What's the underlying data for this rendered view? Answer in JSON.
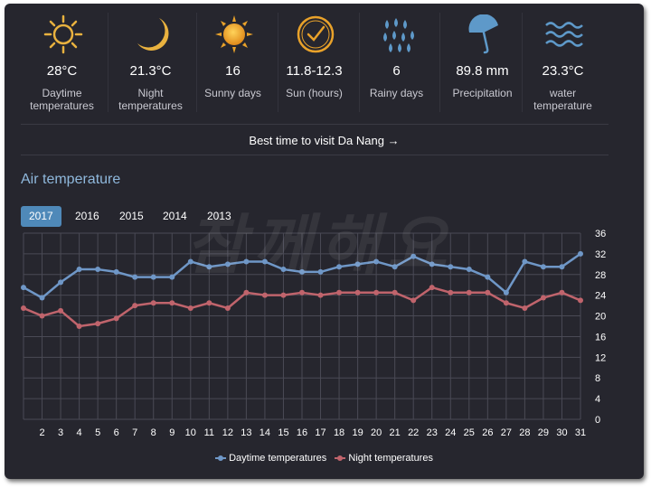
{
  "stats": [
    {
      "icon": "sun-icon",
      "value": "28°C",
      "label": "Daytime temperatures"
    },
    {
      "icon": "moon-icon",
      "value": "21.3°C",
      "label": "Night temperatures"
    },
    {
      "icon": "sunny-icon",
      "value": "16",
      "label": "Sunny days"
    },
    {
      "icon": "clock-icon",
      "value": "11.8-12.3",
      "label": "Sun (hours)"
    },
    {
      "icon": "raindrops-icon",
      "value": "6",
      "label": "Rainy days"
    },
    {
      "icon": "umbrella-icon",
      "value": "89.8 mm",
      "label": "Precipitation"
    },
    {
      "icon": "waves-icon",
      "value": "23.3°C",
      "label": "water temperature"
    }
  ],
  "best_time_link": "Best time to visit Da Nang →",
  "section_title": "Air temperature",
  "years": [
    "2017",
    "2016",
    "2015",
    "2014",
    "2013"
  ],
  "active_year": "2017",
  "watermark": "참께해요",
  "colors": {
    "day": "#6f97c7",
    "night": "#c0646c",
    "accent": "#4f89b9",
    "icon_gold": "#e9b23f"
  },
  "chart_data": {
    "type": "line",
    "x": [
      1,
      2,
      3,
      4,
      5,
      6,
      7,
      8,
      9,
      10,
      11,
      12,
      13,
      14,
      15,
      16,
      17,
      18,
      19,
      20,
      21,
      22,
      23,
      24,
      25,
      26,
      27,
      28,
      29,
      30,
      31
    ],
    "x_tick_labels": [
      "2",
      "3",
      "4",
      "5",
      "6",
      "7",
      "8",
      "9",
      "10",
      "11",
      "12",
      "13",
      "14",
      "15",
      "16",
      "17",
      "18",
      "19",
      "20",
      "21",
      "22",
      "23",
      "24",
      "25",
      "26",
      "27",
      "28",
      "29",
      "30",
      "31"
    ],
    "ylim": [
      0,
      36
    ],
    "y_ticks": [
      0,
      4,
      8,
      12,
      16,
      20,
      24,
      28,
      32,
      36
    ],
    "y_axis_side": "right",
    "grid": true,
    "legend": "bottom",
    "series": [
      {
        "name": "Daytime temperatures",
        "values": [
          25.5,
          23.5,
          26.5,
          29,
          29,
          28.5,
          27.5,
          27.5,
          27.5,
          30.5,
          29.5,
          30,
          30.5,
          30.5,
          29,
          28.5,
          28.5,
          29.5,
          30,
          30.5,
          29.5,
          31.5,
          30,
          29.5,
          29,
          27.5,
          24.5,
          30.5,
          29.5,
          29.5,
          32
        ]
      },
      {
        "name": "Night temperatures",
        "values": [
          21.5,
          20,
          21,
          18,
          18.5,
          19.5,
          22,
          22.5,
          22.5,
          21.5,
          22.5,
          21.5,
          24.5,
          24,
          24,
          24.5,
          24,
          24.5,
          24.5,
          24.5,
          24.5,
          23,
          25.5,
          24.5,
          24.5,
          24.5,
          22.5,
          21.5,
          23.5,
          24.5,
          23
        ]
      }
    ]
  }
}
